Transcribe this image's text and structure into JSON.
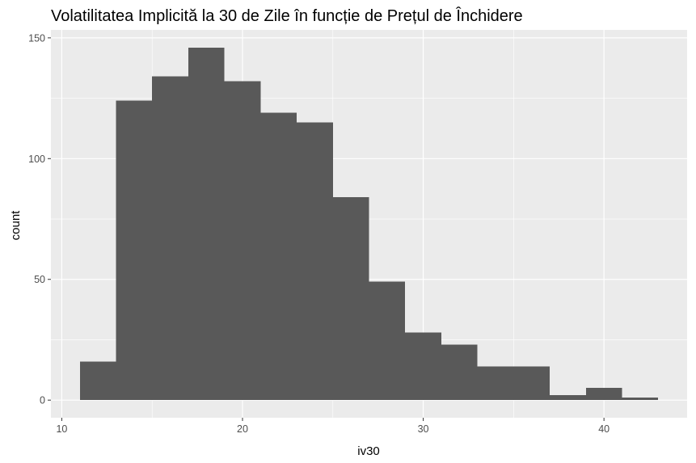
{
  "chart_data": {
    "type": "bar",
    "title": "Volatilitatea Implicită la 30 de Zile în funcție de Prețul de Închidere",
    "xlabel": "iv30",
    "ylabel": "count",
    "bins": [
      {
        "x0": 11,
        "x1": 13,
        "count": 16
      },
      {
        "x0": 13,
        "x1": 15,
        "count": 124
      },
      {
        "x0": 15,
        "x1": 17,
        "count": 134
      },
      {
        "x0": 17,
        "x1": 19,
        "count": 146
      },
      {
        "x0": 19,
        "x1": 21,
        "count": 132
      },
      {
        "x0": 21,
        "x1": 23,
        "count": 119
      },
      {
        "x0": 23,
        "x1": 25,
        "count": 115
      },
      {
        "x0": 25,
        "x1": 27,
        "count": 84
      },
      {
        "x0": 27,
        "x1": 29,
        "count": 49
      },
      {
        "x0": 29,
        "x1": 31,
        "count": 28
      },
      {
        "x0": 31,
        "x1": 33,
        "count": 23
      },
      {
        "x0": 33,
        "x1": 35,
        "count": 14
      },
      {
        "x0": 35,
        "x1": 37,
        "count": 14
      },
      {
        "x0": 37,
        "x1": 39,
        "count": 2
      },
      {
        "x0": 39,
        "x1": 41,
        "count": 5
      },
      {
        "x0": 41,
        "x1": 43,
        "count": 1
      }
    ],
    "xlim": [
      9.4,
      44.6
    ],
    "ylim": [
      -7.3,
      153.3
    ],
    "xticks": [
      10,
      20,
      30,
      40
    ],
    "yticks": [
      0,
      50,
      100,
      150
    ],
    "grid": true,
    "colors": {
      "panel": "#ebebeb",
      "grid_major": "#ffffff",
      "bar_fill": "#595959",
      "tick": "#333333"
    }
  }
}
